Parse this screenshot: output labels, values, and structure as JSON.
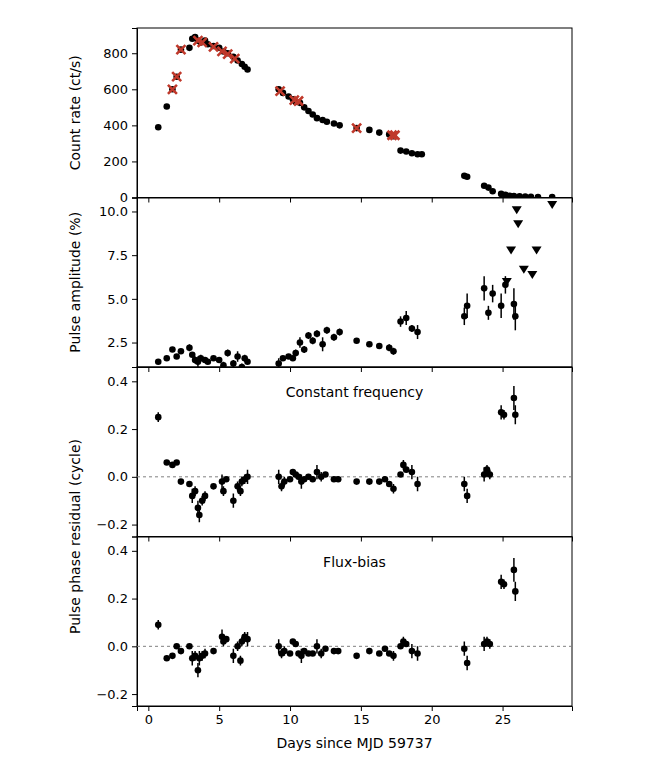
{
  "chart_data": [
    {
      "type": "scatter",
      "y_label": "Count rate (ct/s)",
      "xlim": [
        -0.8,
        29.9
      ],
      "xticks": [
        0,
        5,
        10,
        15,
        20,
        25
      ],
      "ylim": [
        0,
        940
      ],
      "yticks": [
        0,
        200,
        400,
        600,
        800
      ],
      "tick_labels": "y",
      "series": [
        {
          "color": "#000000",
          "marker": "circle",
          "x": [
            0.7,
            1.3,
            1.7,
            2.0,
            2.3,
            2.9,
            3.1,
            3.3,
            3.5,
            3.7,
            4.0,
            4.2,
            4.6,
            5.0,
            5.3,
            5.6,
            6.0,
            6.3,
            6.6,
            6.8,
            7.0,
            9.2,
            9.5,
            9.9,
            10.2,
            10.4,
            10.7,
            11.0,
            11.3,
            11.6,
            11.9,
            12.3,
            12.6,
            13.1,
            13.5,
            14.7,
            15.6,
            16.3,
            17.0,
            17.3,
            17.8,
            18.2,
            18.6,
            19.0,
            19.3,
            22.3,
            22.5,
            23.7,
            24.0,
            24.3,
            24.9,
            25.2,
            25.5,
            25.8,
            26.2,
            26.6,
            27.0,
            27.5,
            28.5
          ],
          "values": [
            390,
            505,
            600,
            670,
            820,
            830,
            880,
            890,
            870,
            860,
            870,
            850,
            840,
            830,
            810,
            800,
            780,
            760,
            740,
            725,
            710,
            600,
            580,
            560,
            545,
            530,
            525,
            500,
            480,
            460,
            440,
            430,
            420,
            410,
            400,
            385,
            375,
            360,
            350,
            340,
            260,
            255,
            245,
            240,
            240,
            120,
            115,
            65,
            55,
            35,
            20,
            15,
            10,
            8,
            6,
            5,
            4,
            3,
            2
          ]
        },
        {
          "color": "#c0392b",
          "marker": "x",
          "x": [
            1.7,
            2.0,
            2.3,
            3.5,
            3.8,
            4.6,
            5.2,
            5.6,
            6.1,
            9.3,
            10.3,
            10.6,
            14.7,
            17.2,
            17.4
          ],
          "values": [
            600,
            670,
            820,
            870,
            860,
            835,
            810,
            795,
            770,
            590,
            540,
            535,
            385,
            345,
            345
          ]
        }
      ]
    },
    {
      "type": "scatter",
      "y_label": "Pulse amplitude (%)",
      "xlim": [
        -0.8,
        29.9
      ],
      "xticks": [
        0,
        5,
        10,
        15,
        20,
        25
      ],
      "ylim": [
        1.1,
        10.8
      ],
      "yticks": [
        2.5,
        {
          "value": 5,
          "label": "5.0"
        },
        7.5,
        {
          "value": 10,
          "label": "10.0"
        }
      ],
      "tick_labels": "y",
      "series": [
        {
          "color": "#000000",
          "marker": "circle",
          "x": [
            0.7,
            1.3,
            1.7,
            2.0,
            2.3,
            2.9,
            3.1,
            3.3,
            3.5,
            3.7,
            4.0,
            4.2,
            4.6,
            5.0,
            5.3,
            5.6,
            6.0,
            6.3,
            6.6,
            6.8,
            7.0,
            9.2,
            9.5,
            9.9,
            10.2,
            10.4,
            10.7,
            11.0,
            11.3,
            11.6,
            11.9,
            12.3,
            12.6,
            13.1,
            13.5,
            14.7,
            15.6,
            16.3,
            17.0,
            17.3,
            17.8,
            18.2,
            18.6,
            19.0,
            22.3,
            22.5,
            23.7,
            24.0,
            24.3,
            24.9,
            25.2,
            25.8,
            25.9
          ],
          "values": [
            1.4,
            1.6,
            2.1,
            1.7,
            2.0,
            2.2,
            1.8,
            1.5,
            1.4,
            1.6,
            1.5,
            1.4,
            1.6,
            1.5,
            1.2,
            1.9,
            1.3,
            1.7,
            1.1,
            1.6,
            1.4,
            1.3,
            1.6,
            1.7,
            1.6,
            1.9,
            2.5,
            2.1,
            2.9,
            2.6,
            3.0,
            2.4,
            3.2,
            2.8,
            3.1,
            2.6,
            2.4,
            2.3,
            2.2,
            2.0,
            3.7,
            3.9,
            3.3,
            3.1,
            4.0,
            4.6,
            5.6,
            4.2,
            5.3,
            4.6,
            5.8,
            4.7,
            4.0
          ],
          "errors": [
            0.1,
            0.1,
            0.1,
            0.1,
            0.1,
            0.2,
            0.1,
            0.2,
            0.3,
            0.2,
            0.1,
            0.1,
            0.1,
            0.1,
            0.2,
            0.2,
            0.2,
            0.3,
            0.2,
            0.2,
            0.1,
            0.3,
            0.1,
            0.1,
            0.1,
            0.2,
            0.3,
            0.2,
            0.2,
            0.2,
            0.2,
            0.4,
            0.2,
            0.2,
            0.2,
            0.1,
            0.1,
            0.1,
            0.2,
            0.2,
            0.3,
            0.4,
            0.2,
            0.4,
            0.5,
            0.7,
            0.7,
            0.4,
            0.5,
            0.7,
            0.5,
            0.9,
            0.8
          ]
        },
        {
          "color": "#000000",
          "marker": "triangle-down",
          "x": [
            25.3,
            25.6,
            26.0,
            26.1,
            26.5,
            27.1,
            27.4,
            28.5
          ],
          "values": [
            6.0,
            7.8,
            10.1,
            9.3,
            6.7,
            6.4,
            7.8,
            10.4
          ]
        }
      ]
    },
    {
      "type": "scatter",
      "annotation": "Constant frequency",
      "xlim": [
        -0.8,
        29.9
      ],
      "xticks": [
        0,
        5,
        10,
        15,
        20,
        25
      ],
      "ylim": [
        -0.25,
        0.46
      ],
      "yticks": [
        {
          "value": -0.2,
          "label": "−0.2"
        },
        {
          "value": 0,
          "label": "0.0"
        },
        0.2,
        0.4
      ],
      "tick_labels": "y",
      "hline": 0,
      "series": [
        {
          "color": "#000000",
          "marker": "circle",
          "x": [
            0.7,
            1.3,
            1.7,
            2.0,
            2.3,
            2.9,
            3.1,
            3.3,
            3.5,
            3.6,
            3.8,
            4.0,
            4.6,
            5.2,
            5.3,
            5.5,
            6.0,
            6.3,
            6.5,
            6.6,
            6.8,
            7.0,
            9.2,
            9.4,
            9.6,
            10.0,
            10.2,
            10.4,
            10.6,
            10.8,
            11.0,
            11.3,
            11.6,
            11.9,
            12.2,
            12.5,
            13.1,
            13.4,
            14.7,
            15.6,
            16.3,
            16.7,
            17.0,
            17.3,
            17.8,
            18.0,
            18.2,
            18.6,
            19.0,
            22.3,
            22.5,
            23.7,
            23.9,
            24.1,
            24.9,
            25.1,
            25.8,
            25.9
          ],
          "values": [
            0.25,
            0.06,
            0.05,
            0.06,
            -0.02,
            -0.03,
            -0.08,
            -0.06,
            -0.13,
            -0.16,
            -0.1,
            -0.08,
            -0.04,
            -0.02,
            -0.06,
            -0.01,
            -0.1,
            -0.04,
            -0.06,
            -0.02,
            -0.01,
            0,
            0,
            -0.04,
            -0.02,
            -0.01,
            0.02,
            0.01,
            0,
            -0.02,
            -0.01,
            0,
            -0.01,
            0.02,
            0,
            0.01,
            -0.01,
            -0.01,
            -0.02,
            -0.02,
            -0.02,
            -0.01,
            -0.03,
            -0.05,
            0.01,
            0.05,
            0.03,
            0.02,
            -0.03,
            -0.03,
            -0.08,
            0.01,
            0.03,
            0.01,
            0.27,
            0.26,
            0.33,
            0.26
          ],
          "errors": [
            0.02,
            0.01,
            0.01,
            0.01,
            0.01,
            0.01,
            0.03,
            0.02,
            0.03,
            0.03,
            0.02,
            0.02,
            0.01,
            0.03,
            0.02,
            0.01,
            0.03,
            0.02,
            0.02,
            0.02,
            0.02,
            0.03,
            0.03,
            0.02,
            0.02,
            0.01,
            0.01,
            0.01,
            0.01,
            0.03,
            0.01,
            0.01,
            0.01,
            0.03,
            0.02,
            0.01,
            0.01,
            0.01,
            0.01,
            0.01,
            0.01,
            0.01,
            0.01,
            0.02,
            0.01,
            0.02,
            0.01,
            0.03,
            0.03,
            0.03,
            0.03,
            0.03,
            0.02,
            0.02,
            0.03,
            0.02,
            0.05,
            0.04
          ]
        }
      ]
    },
    {
      "type": "scatter",
      "annotation": "Flux-bias",
      "y_label": "Pulse phase residual (cycle)",
      "x_label": "Days since MJD 59737",
      "xlim": [
        -0.8,
        29.9
      ],
      "xticks": [
        0,
        5,
        10,
        15,
        20,
        25
      ],
      "ylim": [
        -0.25,
        0.46
      ],
      "yticks": [
        {
          "value": -0.2,
          "label": "−0.2"
        },
        {
          "value": 0,
          "label": "0.0"
        },
        0.2,
        0.4
      ],
      "hline": 0,
      "series": [
        {
          "color": "#000000",
          "marker": "circle",
          "x": [
            0.7,
            1.3,
            1.7,
            2.0,
            2.3,
            2.9,
            3.1,
            3.3,
            3.5,
            3.6,
            3.8,
            4.0,
            4.6,
            5.2,
            5.3,
            5.5,
            6.0,
            6.3,
            6.5,
            6.6,
            6.8,
            7.0,
            9.2,
            9.4,
            9.6,
            10.0,
            10.2,
            10.4,
            10.6,
            10.8,
            11.0,
            11.3,
            11.6,
            11.9,
            12.2,
            12.5,
            13.1,
            13.4,
            14.7,
            15.6,
            16.3,
            16.7,
            17.0,
            17.3,
            17.8,
            18.0,
            18.2,
            18.6,
            19.0,
            22.3,
            22.5,
            23.7,
            23.9,
            24.1,
            24.9,
            25.1,
            25.8,
            25.9
          ],
          "values": [
            0.09,
            -0.05,
            -0.04,
            0,
            -0.02,
            0,
            -0.05,
            -0.04,
            -0.1,
            -0.05,
            -0.04,
            -0.03,
            -0.02,
            0.04,
            0.02,
            0.03,
            -0.04,
            0,
            -0.06,
            0.02,
            0.04,
            0.03,
            0,
            -0.03,
            -0.02,
            -0.03,
            0.02,
            0.01,
            -0.03,
            -0.04,
            -0.02,
            -0.03,
            -0.03,
            0,
            -0.03,
            -0.01,
            -0.02,
            -0.02,
            -0.04,
            -0.02,
            -0.03,
            -0.01,
            -0.03,
            -0.04,
            0,
            0.02,
            0.01,
            -0.02,
            -0.03,
            -0.01,
            -0.07,
            0.01,
            0.02,
            0.01,
            0.27,
            0.26,
            0.32,
            0.23
          ],
          "errors": [
            0.02,
            0.01,
            0.01,
            0.01,
            0.01,
            0.01,
            0.03,
            0.02,
            0.03,
            0.03,
            0.02,
            0.02,
            0.01,
            0.03,
            0.02,
            0.01,
            0.03,
            0.02,
            0.02,
            0.02,
            0.02,
            0.03,
            0.03,
            0.02,
            0.02,
            0.01,
            0.01,
            0.01,
            0.01,
            0.03,
            0.01,
            0.01,
            0.01,
            0.03,
            0.02,
            0.01,
            0.01,
            0.01,
            0.01,
            0.01,
            0.01,
            0.01,
            0.01,
            0.02,
            0.01,
            0.02,
            0.01,
            0.03,
            0.03,
            0.03,
            0.03,
            0.03,
            0.02,
            0.02,
            0.03,
            0.02,
            0.05,
            0.04
          ]
        }
      ]
    }
  ]
}
